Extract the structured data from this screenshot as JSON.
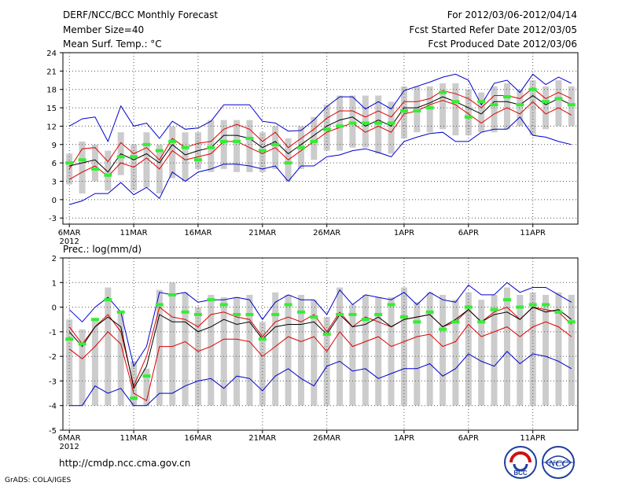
{
  "header": {
    "title": "DERF/NCC/BCC Monthly Forecast",
    "member_size": "Member Size=40",
    "variable": "Mean Surf. Temp.: °C",
    "period": "For 2012/03/06-2012/04/14",
    "started": "Fcst Started Refer Date 2012/03/05",
    "produced": "Fcst Produced Date 2012/03/06"
  },
  "footer": {
    "url": "http://cmdp.ncc.cma.gov.cn",
    "grads": "GrADS: COLA/IGES",
    "logo_left_text": "BCC",
    "logo_right_text": "NCC"
  },
  "colors": {
    "bar": "#cccccc",
    "max_line": "#0000cc",
    "pct_line": "#dd0000",
    "mean_line": "#000000",
    "marker": "#33ee33",
    "grid": "#555555"
  },
  "chart_data": [
    {
      "type": "line",
      "title": "Mean Surf. Temp.: °C",
      "ylim": [
        -4,
        24
      ],
      "yticks": [
        "-3",
        "0",
        "3",
        "6",
        "9",
        "12",
        "15",
        "18",
        "21",
        "24"
      ],
      "xtick_labels": [
        "6MAR",
        "11MAR",
        "16MAR",
        "21MAR",
        "26MAR",
        "1APR",
        "6APR",
        "11APR"
      ],
      "xtick_sub": "2012",
      "xtick_index": [
        0,
        5,
        10,
        15,
        20,
        26,
        31,
        36
      ],
      "series": [
        {
          "name": "max",
          "values": [
            12,
            13.2,
            13.5,
            9.5,
            15.3,
            12,
            12.5,
            10,
            12.8,
            11.5,
            11.7,
            12.8,
            15.5,
            15.5,
            15.5,
            12.8,
            12.5,
            11.2,
            11.3,
            13,
            15.2,
            16.8,
            16.8,
            14.8,
            16,
            14.8,
            17.8,
            18.5,
            19.2,
            20,
            20.5,
            19.5,
            15.5,
            19,
            19.5,
            17.5,
            20.5,
            18.8,
            20,
            19
          ]
        },
        {
          "name": "upper",
          "values": [
            5,
            8.3,
            8.5,
            6.2,
            9.3,
            7.5,
            8.5,
            6.5,
            10,
            8.5,
            9.2,
            9.5,
            11.5,
            12.3,
            11.5,
            9.5,
            11,
            8.5,
            10,
            11.5,
            13.3,
            14.5,
            14.5,
            13.5,
            14.5,
            13.5,
            16,
            16,
            16.5,
            17.8,
            17.3,
            16.5,
            15,
            17,
            17,
            16.5,
            18.2,
            16.5,
            17.5,
            16.5
          ]
        },
        {
          "name": "mean",
          "values": [
            5.5,
            6,
            6.5,
            4.5,
            7.5,
            6.5,
            7.5,
            6,
            9,
            7.3,
            8,
            8.5,
            10.5,
            10.5,
            10,
            8.5,
            9.5,
            7.5,
            9,
            10.5,
            12,
            13,
            13.5,
            12,
            13,
            12,
            15,
            15,
            15.8,
            16.8,
            16,
            15,
            14,
            16,
            16,
            15.5,
            17,
            15.5,
            16.5,
            15.5
          ]
        },
        {
          "name": "lower",
          "values": [
            3.3,
            4.5,
            5.5,
            3.8,
            6,
            5.3,
            6.8,
            5,
            8,
            6.5,
            7,
            7.5,
            9.5,
            9.5,
            8.5,
            7.5,
            8.5,
            6.5,
            8,
            9.5,
            11,
            11.8,
            12.5,
            11,
            12,
            11,
            14,
            14.5,
            15.5,
            16.2,
            15.5,
            14,
            12.5,
            14,
            15,
            14,
            16,
            14,
            15,
            13.8
          ]
        },
        {
          "name": "min",
          "values": [
            -0.8,
            -0.2,
            1,
            1,
            2.8,
            0.8,
            2,
            0.2,
            4.5,
            3,
            4.5,
            5,
            5.8,
            5.8,
            5.5,
            5,
            5.5,
            3,
            5.5,
            5.5,
            7,
            7.3,
            8,
            8.3,
            7.7,
            7,
            9.5,
            10.2,
            10.8,
            11,
            9.5,
            9.5,
            11,
            11.5,
            11.5,
            13.5,
            10.5,
            10.2,
            9.5,
            9
          ]
        }
      ],
      "bars": {
        "low": [
          2.5,
          1,
          3,
          1.5,
          4,
          1.5,
          2,
          1,
          3.5,
          3,
          5,
          4.5,
          5,
          4.5,
          4.5,
          4.5,
          5,
          3,
          5,
          6.5,
          8,
          8,
          8.5,
          8.5,
          7.5,
          7.5,
          10,
          11,
          11,
          11.5,
          10.5,
          10.5,
          11,
          11,
          11.5,
          12,
          10.5,
          11.5,
          12,
          12
        ],
        "high": [
          7.5,
          9.5,
          9,
          8,
          11,
          9,
          11,
          9,
          12,
          11,
          11,
          13,
          13,
          13,
          13,
          11,
          12,
          10,
          12,
          13.5,
          15.5,
          17,
          17,
          17,
          17,
          16,
          18.5,
          18.5,
          18.5,
          19,
          19,
          18,
          17.5,
          18.5,
          19,
          18,
          19.5,
          18.5,
          19.5,
          18.5
        ]
      },
      "markers": [
        6,
        6.5,
        5,
        4,
        7,
        7,
        9,
        8,
        9.5,
        8.5,
        6.5,
        8.5,
        9.5,
        9.5,
        10,
        8,
        9,
        6,
        8.5,
        9.5,
        11.5,
        12,
        12.5,
        12.5,
        12.5,
        12.5,
        14.5,
        14.5,
        15,
        17.5,
        16,
        13.5,
        16,
        15.5,
        16.8,
        15.5,
        18,
        16,
        16.5,
        15.5
      ]
    },
    {
      "type": "line",
      "title": "Prec.: log(mm/d)",
      "ylim": [
        -5,
        2
      ],
      "yticks": [
        "-5",
        "-4",
        "-3",
        "-2",
        "-1",
        "0",
        "1",
        "2"
      ],
      "xtick_labels": [
        "6MAR",
        "11MAR",
        "16MAR",
        "21MAR",
        "26MAR",
        "1APR",
        "6APR",
        "11APR"
      ],
      "xtick_sub": "2012",
      "xtick_index": [
        0,
        5,
        10,
        15,
        20,
        26,
        31,
        36
      ],
      "series": [
        {
          "name": "max",
          "values": [
            -0.1,
            -0.6,
            0,
            0.4,
            -0.2,
            -2.4,
            -1.6,
            0.6,
            0.5,
            0.6,
            0.2,
            0.3,
            0.3,
            0.4,
            0.3,
            -0.5,
            0.2,
            0.5,
            0.3,
            0.3,
            -0.3,
            0.7,
            0.1,
            0.5,
            0.4,
            0.3,
            0.6,
            0.1,
            0.6,
            0.3,
            0.2,
            0.9,
            0.5,
            0.5,
            1,
            0.6,
            0.8,
            0.8,
            0.5,
            0.2
          ]
        },
        {
          "name": "upper",
          "values": [
            -0.8,
            -1.5,
            -0.8,
            -0.3,
            -1,
            -3.2,
            -2,
            0,
            -0.4,
            -0.5,
            -0.8,
            -0.3,
            -0.2,
            -0.4,
            -0.5,
            -1.2,
            -0.6,
            -0.4,
            -0.6,
            -0.3,
            -1,
            -0.2,
            -0.8,
            -0.4,
            -0.6,
            -0.8,
            -0.5,
            -0.4,
            -0.3,
            -0.8,
            -0.6,
            -0.1,
            -0.6,
            -0.2,
            0,
            -0.5,
            0,
            -0.1,
            -0.2,
            -0.7
          ]
        },
        {
          "name": "mean",
          "values": [
            -1,
            -1.6,
            -0.8,
            -0.4,
            -0.8,
            -3.3,
            -2.4,
            -0.3,
            -0.6,
            -0.6,
            -1,
            -0.8,
            -0.5,
            -0.7,
            -0.6,
            -1.3,
            -0.8,
            -0.7,
            -0.7,
            -0.6,
            -1.1,
            -0.3,
            -0.8,
            -0.7,
            -0.4,
            -0.8,
            -0.5,
            -0.4,
            -0.3,
            -0.8,
            -0.5,
            -0.1,
            -0.6,
            -0.3,
            -0.2,
            -0.5,
            0,
            -0.2,
            -0.1,
            -0.5
          ]
        },
        {
          "name": "lower",
          "values": [
            -1.7,
            -2.1,
            -1.6,
            -1,
            -1.5,
            -3.5,
            -3.8,
            -1.6,
            -1.6,
            -1.4,
            -1.8,
            -1.6,
            -1.3,
            -1.3,
            -1.4,
            -2,
            -1.6,
            -1.2,
            -1.4,
            -1.2,
            -1.8,
            -1,
            -1.6,
            -1.4,
            -1.2,
            -1.6,
            -1.4,
            -1.2,
            -1.1,
            -1.6,
            -1.4,
            -0.7,
            -1.2,
            -1,
            -0.8,
            -1.2,
            -0.8,
            -0.6,
            -0.8,
            -1.2
          ]
        },
        {
          "name": "min",
          "values": [
            -4,
            -4,
            -3.2,
            -3.5,
            -3.3,
            -4,
            -4,
            -3.5,
            -3.5,
            -3.2,
            -3,
            -2.9,
            -3.3,
            -2.8,
            -2.9,
            -3.4,
            -2.8,
            -2.5,
            -2.9,
            -3.2,
            -2.4,
            -2.2,
            -2.6,
            -2.5,
            -2.9,
            -2.7,
            -2.5,
            -2.5,
            -2.3,
            -2.8,
            -2.5,
            -1.9,
            -2.2,
            -2.4,
            -1.8,
            -2.3,
            -1.9,
            -2,
            -2.2,
            -2.5
          ]
        }
      ],
      "bars": {
        "low": [
          -4,
          -4,
          -4,
          -4,
          -4,
          -4,
          -4,
          -4,
          -4,
          -4,
          -4,
          -4,
          -4,
          -4,
          -4,
          -4,
          -4,
          -4,
          -4,
          -4,
          -4,
          -4,
          -4,
          -4,
          -4,
          -4,
          -4,
          -4,
          -4,
          -4,
          -4,
          -4,
          -4,
          -4,
          -4,
          -4,
          -4,
          -4,
          -4,
          -4
        ],
        "high": [
          -0.5,
          -0.9,
          -0.5,
          0.8,
          -0.2,
          -2.2,
          -2.5,
          0.7,
          1,
          0.6,
          0,
          0.5,
          0.4,
          0.4,
          0.5,
          -0.6,
          0.6,
          0.5,
          0.5,
          0.3,
          -0.4,
          0.8,
          0.1,
          0.5,
          0.4,
          0.4,
          0.8,
          0.2,
          0.6,
          0.5,
          0.3,
          0.6,
          0.3,
          0.5,
          0.8,
          0.5,
          0.6,
          0.5,
          0.6,
          0.5
        ]
      },
      "markers": [
        -1.3,
        -1.5,
        -0.5,
        0.3,
        -0.2,
        -3.7,
        -2.8,
        0.1,
        0.5,
        -0.2,
        -0.3,
        0.3,
        0.1,
        -0.3,
        -0.3,
        -1.3,
        -0.3,
        0.1,
        -0.2,
        -0.4,
        -1.1,
        -0.3,
        -0.3,
        -0.5,
        -0.3,
        0.1,
        -0.4,
        -0.6,
        -0.2,
        -0.9,
        -0.6,
        0,
        -0.6,
        -0.1,
        0.3,
        0,
        0.1,
        0.1,
        -0.2,
        -0.6
      ]
    }
  ]
}
